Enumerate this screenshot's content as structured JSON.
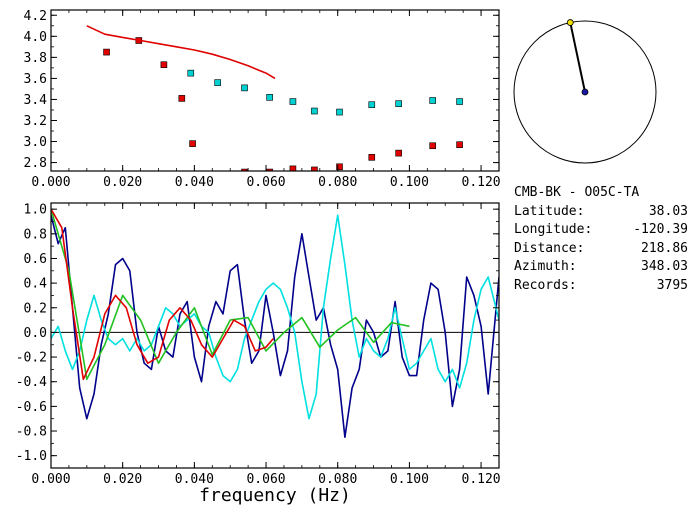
{
  "station_info": {
    "pair": "CMB-BK - O05C-TA",
    "rows": [
      {
        "label": "Latitude:",
        "value": "38.03"
      },
      {
        "label": "Longitude:",
        "value": "-120.39"
      },
      {
        "label": "Distance:",
        "value": "218.86"
      },
      {
        "label": "Azimuth:",
        "value": "348.03"
      },
      {
        "label": "Records:",
        "value": "3795"
      }
    ]
  },
  "azimuth_dial": {
    "azimuth_deg": 348.03
  },
  "chart_data": [
    {
      "type": "scatter",
      "title": "",
      "xlabel": "",
      "ylabel": "",
      "xlim": [
        0.0,
        0.125
      ],
      "ylim": [
        2.72,
        4.25
      ],
      "x_ticks": [
        "0.000",
        "0.020",
        "0.040",
        "0.060",
        "0.080",
        "0.100",
        "0.120"
      ],
      "y_ticks": [
        "2.8",
        "3.0",
        "3.2",
        "3.4",
        "3.6",
        "3.8",
        "4.0",
        "4.2"
      ],
      "x_tick_values": [
        0.0,
        0.02,
        0.04,
        0.06,
        0.08,
        0.1,
        0.12
      ],
      "y_tick_values": [
        2.8,
        3.0,
        3.2,
        3.4,
        3.6,
        3.8,
        4.0,
        4.2
      ],
      "series": [
        {
          "color": "#e00000",
          "marker": "square",
          "x": [
            0.0155,
            0.0245,
            0.0315,
            0.0365,
            0.0395,
            0.054,
            0.061,
            0.0675,
            0.0735,
            0.0805,
            0.0895,
            0.097,
            0.1065,
            0.114
          ],
          "y": [
            3.85,
            3.96,
            3.73,
            3.41,
            2.98,
            2.71,
            2.71,
            2.74,
            2.73,
            2.76,
            2.85,
            2.89,
            2.96,
            2.97
          ]
        },
        {
          "color": "#00d0d0",
          "marker": "square",
          "x": [
            0.039,
            0.0465,
            0.054,
            0.061,
            0.0675,
            0.0735,
            0.0805,
            0.0895,
            0.097,
            0.1065,
            0.114
          ],
          "y": [
            3.65,
            3.56,
            3.51,
            3.42,
            3.38,
            3.29,
            3.28,
            3.35,
            3.36,
            3.39,
            3.38
          ]
        },
        {
          "color": "#e00000",
          "marker": "line",
          "x": [
            0.01,
            0.015,
            0.02,
            0.025,
            0.03,
            0.035,
            0.04,
            0.045,
            0.05,
            0.055,
            0.06,
            0.0625
          ],
          "y": [
            4.1,
            4.02,
            3.99,
            3.96,
            3.93,
            3.9,
            3.87,
            3.83,
            3.78,
            3.72,
            3.65,
            3.6
          ]
        }
      ]
    },
    {
      "type": "line",
      "title": "",
      "xlabel": "frequency (Hz)",
      "ylabel": "",
      "xlim": [
        0.0,
        0.125
      ],
      "ylim": [
        -1.1,
        1.05
      ],
      "x_ticks": [
        "0.000",
        "0.020",
        "0.040",
        "0.060",
        "0.080",
        "0.100",
        "0.120"
      ],
      "y_ticks": [
        "1.0",
        "0.8",
        "0.6",
        "0.4",
        "0.2",
        "0.0",
        "-0.2",
        "-0.4",
        "-0.6",
        "-0.8",
        "-1.0"
      ],
      "x_tick_values": [
        0.0,
        0.02,
        0.04,
        0.06,
        0.08,
        0.1,
        0.12
      ],
      "y_tick_values": [
        1.0,
        0.8,
        0.6,
        0.4,
        0.2,
        0.0,
        -0.2,
        -0.4,
        -0.6,
        -0.8,
        -1.0
      ],
      "series": [
        {
          "color": "#00008b",
          "x": [
            0.0,
            0.002,
            0.004,
            0.006,
            0.008,
            0.01,
            0.012,
            0.014,
            0.016,
            0.018,
            0.02,
            0.022,
            0.024,
            0.026,
            0.028,
            0.03,
            0.032,
            0.034,
            0.036,
            0.038,
            0.04,
            0.042,
            0.044,
            0.046,
            0.048,
            0.05,
            0.052,
            0.054,
            0.056,
            0.058,
            0.06,
            0.062,
            0.064,
            0.066,
            0.068,
            0.07,
            0.072,
            0.074,
            0.076,
            0.078,
            0.08,
            0.082,
            0.084,
            0.086,
            0.088,
            0.09,
            0.092,
            0.094,
            0.096,
            0.098,
            0.1,
            0.102,
            0.104,
            0.106,
            0.108,
            0.11,
            0.112,
            0.114,
            0.116,
            0.118,
            0.12,
            0.122,
            0.125
          ],
          "y": [
            0.95,
            0.72,
            0.85,
            0.2,
            -0.45,
            -0.7,
            -0.5,
            -0.1,
            0.15,
            0.55,
            0.6,
            0.5,
            0.0,
            -0.25,
            -0.3,
            0.05,
            -0.15,
            -0.2,
            0.15,
            0.25,
            -0.2,
            -0.4,
            0.05,
            0.25,
            0.15,
            0.5,
            0.55,
            0.1,
            -0.25,
            -0.15,
            0.3,
            0.0,
            -0.35,
            -0.15,
            0.45,
            0.8,
            0.45,
            0.1,
            0.2,
            -0.1,
            -0.3,
            -0.85,
            -0.45,
            -0.3,
            0.1,
            0.0,
            -0.2,
            -0.15,
            0.25,
            -0.2,
            -0.35,
            -0.35,
            0.1,
            0.4,
            0.35,
            0.0,
            -0.6,
            -0.3,
            0.45,
            0.3,
            0.05,
            -0.5,
            0.45
          ]
        },
        {
          "color": "#00e0e0",
          "x": [
            0.0,
            0.002,
            0.004,
            0.006,
            0.008,
            0.01,
            0.012,
            0.014,
            0.016,
            0.018,
            0.02,
            0.022,
            0.024,
            0.026,
            0.028,
            0.03,
            0.032,
            0.034,
            0.036,
            0.038,
            0.04,
            0.042,
            0.044,
            0.046,
            0.048,
            0.05,
            0.052,
            0.054,
            0.056,
            0.058,
            0.06,
            0.062,
            0.064,
            0.066,
            0.068,
            0.07,
            0.072,
            0.074,
            0.076,
            0.078,
            0.08,
            0.082,
            0.084,
            0.086,
            0.088,
            0.09,
            0.092,
            0.094,
            0.096,
            0.098,
            0.1,
            0.102,
            0.104,
            0.106,
            0.108,
            0.11,
            0.112,
            0.114,
            0.116,
            0.118,
            0.12,
            0.122,
            0.125
          ],
          "y": [
            -0.05,
            0.05,
            -0.15,
            -0.3,
            -0.15,
            0.1,
            0.3,
            0.1,
            -0.05,
            -0.1,
            -0.05,
            -0.15,
            -0.05,
            -0.15,
            -0.1,
            0.05,
            0.2,
            0.15,
            0.05,
            0.1,
            0.15,
            0.05,
            0.0,
            -0.2,
            -0.35,
            -0.4,
            -0.3,
            -0.05,
            0.1,
            0.25,
            0.35,
            0.4,
            0.35,
            0.2,
            0.0,
            -0.4,
            -0.7,
            -0.5,
            0.2,
            0.6,
            0.95,
            0.55,
            0.1,
            -0.2,
            -0.05,
            -0.15,
            -0.2,
            -0.05,
            0.2,
            -0.05,
            -0.3,
            -0.25,
            -0.15,
            -0.05,
            -0.3,
            -0.4,
            -0.3,
            -0.45,
            -0.25,
            0.1,
            0.35,
            0.45,
            0.1
          ]
        },
        {
          "color": "#22c022",
          "x": [
            0.0,
            0.005,
            0.01,
            0.015,
            0.02,
            0.025,
            0.03,
            0.035,
            0.04,
            0.045,
            0.05,
            0.055,
            0.06,
            0.065,
            0.07,
            0.075,
            0.08,
            0.085,
            0.09,
            0.095,
            0.1
          ],
          "y": [
            1.0,
            0.5,
            -0.38,
            -0.1,
            0.3,
            0.1,
            -0.25,
            0.0,
            0.2,
            -0.18,
            0.1,
            0.12,
            -0.15,
            0.0,
            0.12,
            -0.12,
            0.02,
            0.12,
            -0.08,
            0.08,
            0.05
          ]
        },
        {
          "color": "#e00000",
          "x": [
            0.0,
            0.003,
            0.006,
            0.009,
            0.012,
            0.015,
            0.018,
            0.021,
            0.024,
            0.027,
            0.03,
            0.033,
            0.036,
            0.039,
            0.042,
            0.045,
            0.048,
            0.051,
            0.054,
            0.057,
            0.06,
            0.062
          ],
          "y": [
            1.0,
            0.85,
            0.2,
            -0.38,
            -0.2,
            0.15,
            0.3,
            0.2,
            -0.1,
            -0.25,
            -0.2,
            0.1,
            0.2,
            0.1,
            -0.1,
            -0.2,
            -0.05,
            0.1,
            0.05,
            -0.15,
            -0.12,
            -0.05
          ]
        }
      ]
    }
  ]
}
